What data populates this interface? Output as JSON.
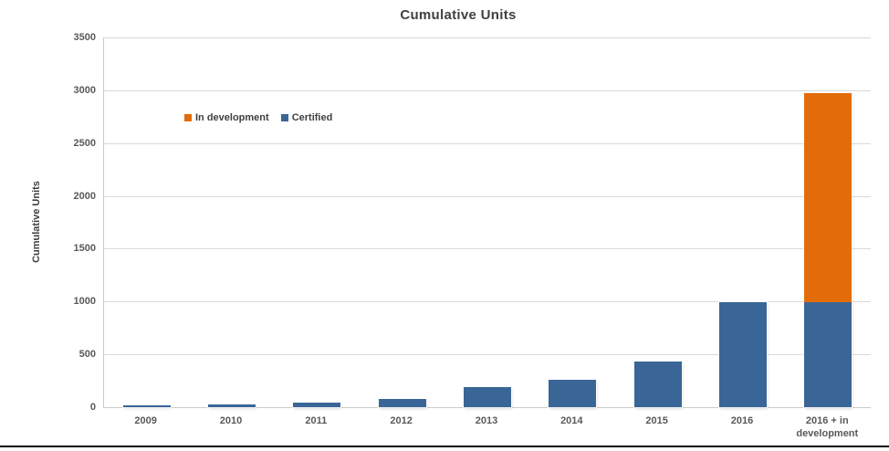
{
  "chart_data": {
    "type": "bar",
    "stacked": true,
    "title": "Cumulative Units",
    "xlabel": "",
    "ylabel": "Cumulative Units",
    "ylim": [
      0,
      3500
    ],
    "yticks": [
      0,
      500,
      1000,
      1500,
      2000,
      2500,
      3000,
      3500
    ],
    "grid": "horizontal",
    "legend_position": "inside-upper-left",
    "categories": [
      "2009",
      "2010",
      "2011",
      "2012",
      "2013",
      "2014",
      "2015",
      "2016",
      "2016 + in development"
    ],
    "series": [
      {
        "name": "In development",
        "color": "#E36C0A",
        "values": [
          0,
          0,
          0,
          0,
          0,
          0,
          0,
          0,
          1975
        ]
      },
      {
        "name": "Certified",
        "color": "#3A6597",
        "values": [
          15,
          25,
          45,
          80,
          190,
          260,
          435,
          990,
          990
        ]
      }
    ],
    "colors": {
      "background": "#FFFFFF",
      "gridline": "#D9D9D9",
      "axis_line": "#C9C9C9",
      "tick_text": "#595959",
      "title_text": "#404040",
      "bottom_rule": "#000000"
    }
  }
}
